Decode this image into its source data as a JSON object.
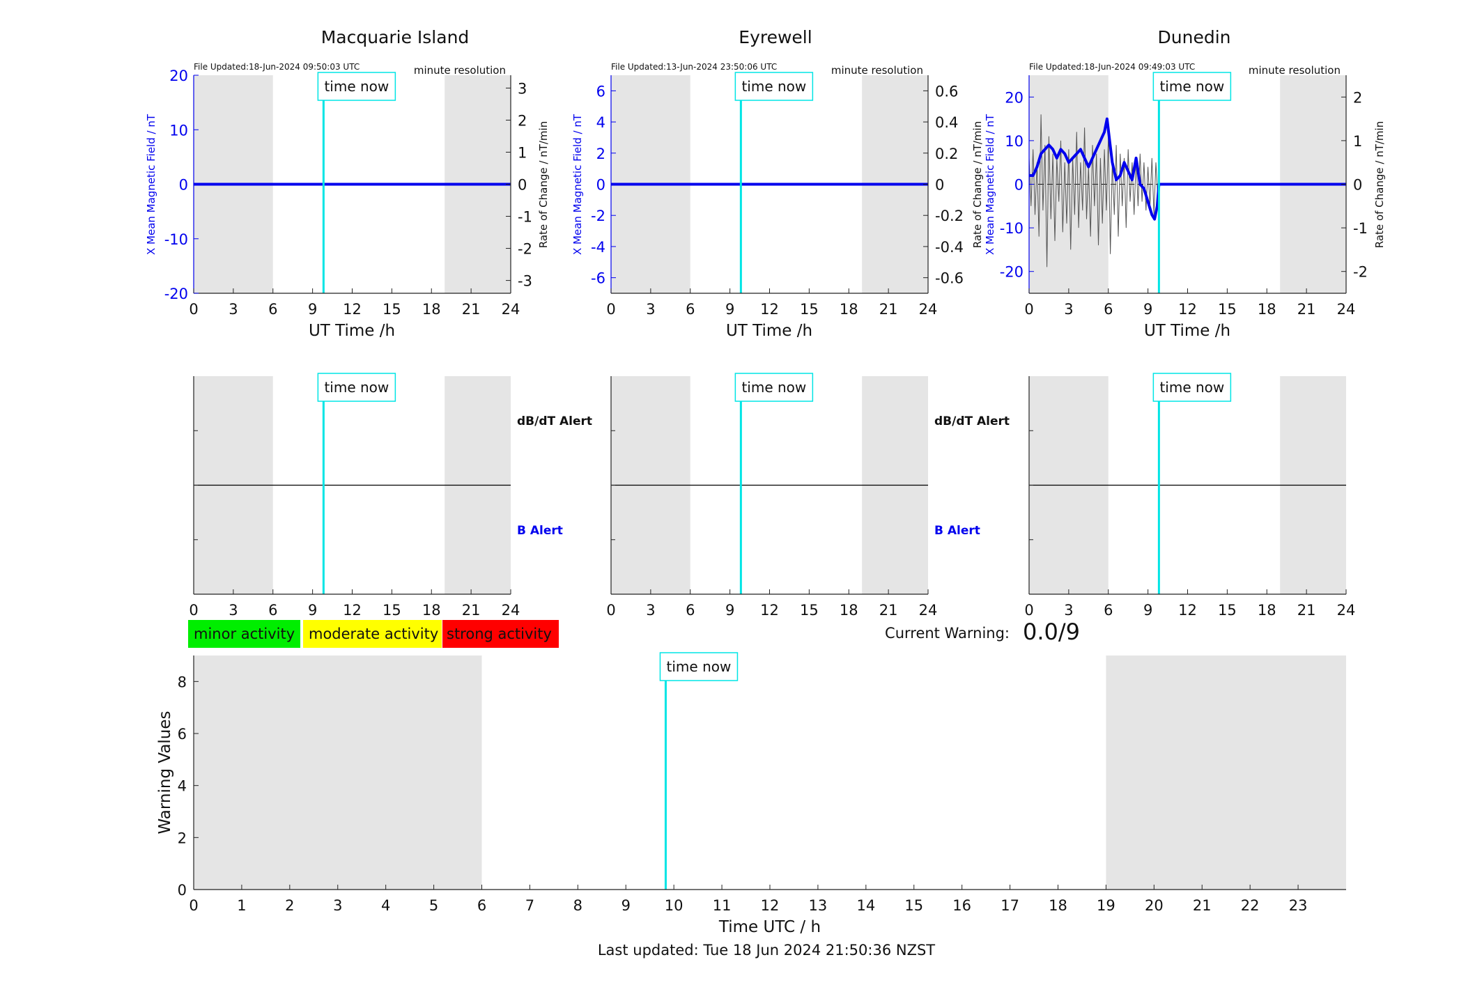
{
  "footer": {
    "last_updated": "Last updated: Tue 18 Jun 2024 21:50:36 NZST"
  },
  "colors": {
    "shade": "#e5e5e5",
    "time_now": "#00e5e5",
    "field": "#0000ee",
    "rate": "#555555",
    "axis": "#222222",
    "minor": "#00ee00",
    "moderate": "#ffff00",
    "strong": "#ff0000"
  },
  "current_warning": {
    "label": "Current Warning:",
    "value": "0.0/9"
  },
  "legend": [
    {
      "label": "minor activity",
      "color": "#00ee00"
    },
    {
      "label": "moderate activity",
      "color": "#ffff00"
    },
    {
      "label": "strong activity",
      "color": "#ff0000"
    }
  ],
  "chart_data": [
    {
      "type": "line",
      "title": "Macquarie Island",
      "file_updated": "File Updated:18-Jun-2024 09:50:03 UTC",
      "resolution": "minute resolution",
      "xlabel": "UT Time /h",
      "ylabel_left": "X Mean Magnetic Field / nT",
      "ylabel_right": "Rate of Change / nT/min",
      "xlim": [
        0,
        24
      ],
      "xticks": [
        0,
        3,
        6,
        9,
        12,
        15,
        18,
        21,
        24
      ],
      "ylim_left": [
        -20,
        20
      ],
      "yticks_left": [
        -20,
        -10,
        0,
        10,
        20
      ],
      "ylim_right": [
        -3.4,
        3.4
      ],
      "yticks_right": [
        -3,
        -2,
        -1,
        0,
        1,
        2,
        3
      ],
      "night_shading": [
        [
          0,
          6
        ],
        [
          19,
          24
        ]
      ],
      "time_now": 9.83,
      "time_now_label": "time now",
      "field_x": [
        0,
        24
      ],
      "field_y": [
        0,
        0
      ],
      "rate_x": [
        0,
        24
      ],
      "rate_y": [
        0,
        0
      ]
    },
    {
      "type": "line",
      "title": "Eyrewell",
      "file_updated": "File Updated:13-Jun-2024 23:50:06 UTC",
      "resolution": "minute resolution",
      "xlabel": "UT Time /h",
      "ylabel_left": "X Mean Magnetic Field / nT",
      "ylabel_right": "",
      "xlim": [
        0,
        24
      ],
      "xticks": [
        0,
        3,
        6,
        9,
        12,
        15,
        18,
        21,
        24
      ],
      "ylim_left": [
        -7,
        7
      ],
      "yticks_left": [
        -6,
        -4,
        -2,
        0,
        2,
        4,
        6
      ],
      "ylim_right": [
        -0.7,
        0.7
      ],
      "yticks_right": [
        -0.6,
        -0.4,
        -0.2,
        0,
        0.2,
        0.4,
        0.6
      ],
      "night_shading": [
        [
          0,
          6
        ],
        [
          19,
          24
        ]
      ],
      "time_now": 9.83,
      "time_now_label": "time now",
      "field_x": [
        0,
        24
      ],
      "field_y": [
        0,
        0
      ],
      "rate_x": [
        0,
        24
      ],
      "rate_y": [
        0,
        0
      ]
    },
    {
      "type": "line",
      "title": "Dunedin",
      "file_updated": "File Updated:18-Jun-2024 09:49:03 UTC",
      "resolution": "minute resolution",
      "xlabel": "UT Time /h",
      "ylabel_left": "X Mean Magnetic Field / nT",
      "ylabel_left_extra": "Rate of Change / nT/min",
      "ylabel_right": "Rate of Change / nT/min",
      "xlim": [
        0,
        24
      ],
      "xticks": [
        0,
        3,
        6,
        9,
        12,
        15,
        18,
        21,
        24
      ],
      "ylim_left": [
        -25,
        25
      ],
      "yticks_left": [
        -20,
        -10,
        0,
        10,
        20
      ],
      "ylim_right": [
        -2.5,
        2.5
      ],
      "yticks_right": [
        -2,
        -1,
        0,
        1,
        2
      ],
      "night_shading": [
        [
          0,
          6
        ],
        [
          19,
          24
        ]
      ],
      "time_now": 9.83,
      "time_now_label": "time now",
      "field_x": [
        0,
        0.3,
        0.6,
        0.9,
        1.2,
        1.5,
        1.8,
        2.1,
        2.4,
        2.7,
        3.0,
        3.3,
        3.6,
        3.9,
        4.2,
        4.5,
        4.8,
        5.1,
        5.4,
        5.7,
        5.9,
        6.1,
        6.3,
        6.6,
        6.9,
        7.2,
        7.5,
        7.8,
        8.1,
        8.4,
        8.7,
        9.0,
        9.3,
        9.5,
        9.7,
        9.83,
        9.9,
        12,
        15,
        18,
        21,
        24
      ],
      "field_y": [
        2,
        2,
        4,
        7,
        8,
        9,
        8,
        6,
        8,
        7,
        5,
        6,
        7,
        8,
        6,
        4,
        6,
        8,
        10,
        12,
        15,
        10,
        5,
        1,
        2,
        5,
        3,
        1,
        6,
        0,
        -1,
        -4,
        -7,
        -8,
        -5,
        0,
        0,
        0,
        0,
        0,
        0,
        0
      ],
      "rate_x": [
        0,
        0.15,
        0.3,
        0.45,
        0.6,
        0.75,
        0.9,
        1.05,
        1.2,
        1.35,
        1.5,
        1.65,
        1.8,
        1.95,
        2.1,
        2.25,
        2.4,
        2.55,
        2.7,
        2.85,
        3.0,
        3.15,
        3.3,
        3.45,
        3.6,
        3.75,
        3.9,
        4.05,
        4.2,
        4.35,
        4.5,
        4.65,
        4.8,
        4.95,
        5.1,
        5.25,
        5.4,
        5.55,
        5.7,
        5.85,
        6.0,
        6.15,
        6.3,
        6.45,
        6.6,
        6.75,
        6.9,
        7.05,
        7.2,
        7.35,
        7.5,
        7.65,
        7.8,
        7.95,
        8.1,
        8.25,
        8.4,
        8.55,
        8.7,
        8.85,
        9.0,
        9.15,
        9.3,
        9.45,
        9.6,
        9.75,
        9.83,
        12,
        15,
        18,
        21,
        24
      ],
      "rate_y": [
        0.6,
        -0.5,
        0.8,
        -0.7,
        0.5,
        -1.2,
        1.6,
        -0.6,
        0.9,
        -1.9,
        1.1,
        -0.8,
        0.7,
        -1.3,
        0.6,
        -0.4,
        1.0,
        -1.1,
        0.5,
        -0.9,
        0.8,
        -1.5,
        0.6,
        -0.7,
        1.2,
        -1.0,
        0.5,
        -0.6,
        1.3,
        -0.8,
        0.4,
        -1.2,
        0.9,
        -0.5,
        0.7,
        -1.4,
        0.6,
        -0.9,
        0.8,
        -0.6,
        1.1,
        -1.6,
        0.5,
        -0.7,
        0.9,
        -1.2,
        0.7,
        -0.5,
        0.6,
        -1.0,
        0.8,
        -0.4,
        0.5,
        -0.7,
        0.6,
        -0.5,
        0.7,
        -0.4,
        0.5,
        -0.6,
        0.4,
        -0.5,
        0.6,
        -0.7,
        0.5,
        -0.3,
        0,
        0,
        0,
        0,
        0,
        0
      ]
    },
    {
      "type": "line",
      "xlim": [
        0,
        24
      ],
      "xticks": [
        0,
        3,
        6,
        9,
        12,
        15,
        18,
        21,
        24
      ],
      "night_shading": [
        [
          0,
          6
        ],
        [
          19,
          24
        ]
      ],
      "time_now": 9.83,
      "time_now_label": "time now",
      "alert_labels": [
        "dB/dT Alert",
        "B Alert"
      ]
    },
    {
      "type": "line",
      "xlim": [
        0,
        24
      ],
      "xticks": [
        0,
        3,
        6,
        9,
        12,
        15,
        18,
        21,
        24
      ],
      "night_shading": [
        [
          0,
          6
        ],
        [
          19,
          24
        ]
      ],
      "time_now": 9.83,
      "time_now_label": "time now",
      "alert_labels": [
        "dB/dT Alert",
        "B Alert"
      ]
    },
    {
      "type": "line",
      "xlim": [
        0,
        24
      ],
      "xticks": [
        0,
        3,
        6,
        9,
        12,
        15,
        18,
        21,
        24
      ],
      "night_shading": [
        [
          0,
          6
        ],
        [
          19,
          24
        ]
      ],
      "time_now": 9.83,
      "time_now_label": "time now",
      "alert_labels": []
    },
    {
      "type": "bar",
      "xlabel": "Time UTC / h",
      "ylabel": "Warning Values",
      "xlim": [
        0,
        24
      ],
      "xticks": [
        0,
        1,
        2,
        3,
        4,
        5,
        6,
        7,
        8,
        9,
        10,
        11,
        12,
        13,
        14,
        15,
        16,
        17,
        18,
        19,
        20,
        21,
        22,
        23
      ],
      "ylim": [
        0,
        9
      ],
      "yticks": [
        0,
        2,
        4,
        6,
        8
      ],
      "night_shading": [
        [
          0,
          6
        ],
        [
          19,
          24
        ]
      ],
      "time_now": 9.83,
      "time_now_label": "time now"
    }
  ]
}
